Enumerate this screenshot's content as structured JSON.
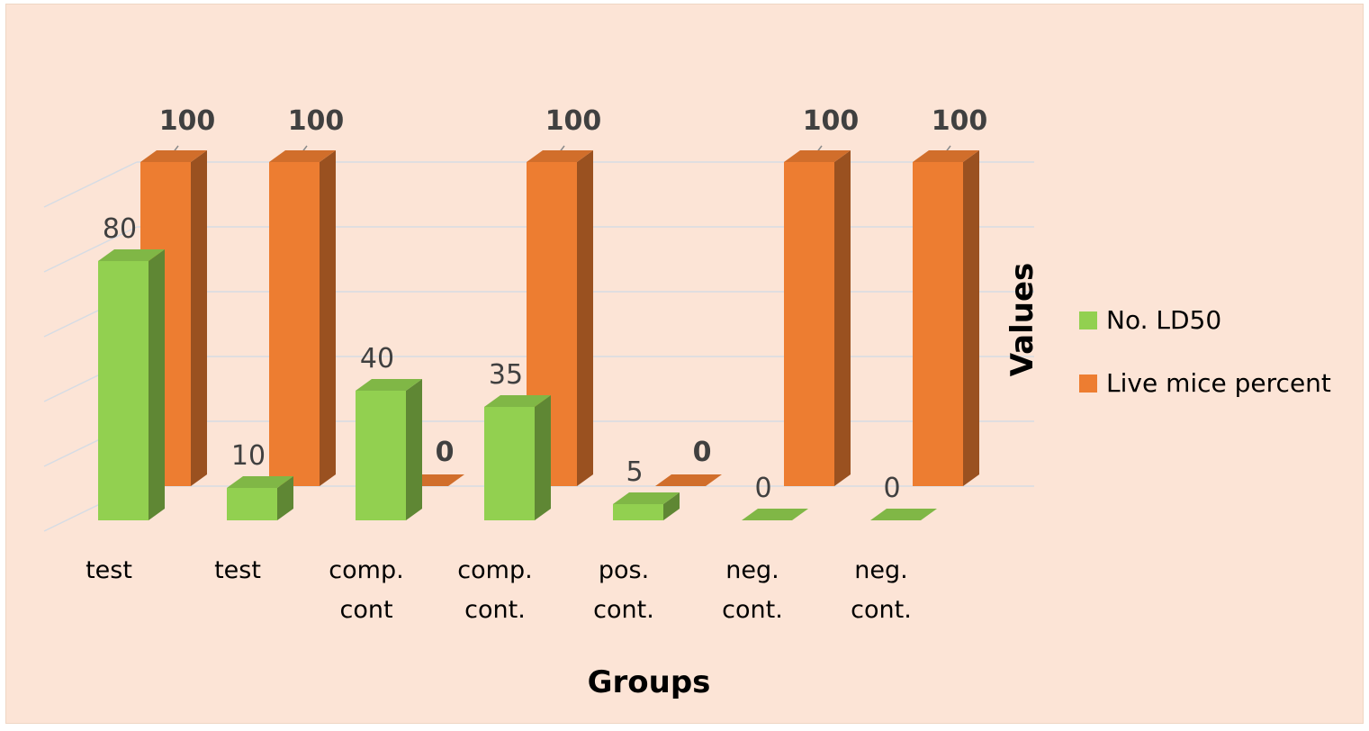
{
  "chart_data": {
    "type": "bar",
    "subtype": "3d-clustered-column",
    "background_color": "#fce4d6",
    "categories": [
      [
        "test"
      ],
      [
        "test"
      ],
      [
        "comp.",
        "cont"
      ],
      [
        "comp.",
        "cont."
      ],
      [
        "pos.",
        "cont."
      ],
      [
        "neg.",
        "cont."
      ],
      [
        "neg.",
        "cont."
      ]
    ],
    "series": [
      {
        "name": "No. LD50",
        "color": "#92d050",
        "values": [
          80,
          10,
          40,
          35,
          5,
          0,
          0
        ],
        "labels": [
          "80",
          "10",
          "40",
          "35",
          "5",
          "0",
          "0"
        ],
        "label_weight": "normal"
      },
      {
        "name": "Live mice percent",
        "color": "#ed7d31",
        "values": [
          100,
          100,
          0,
          100,
          0,
          100,
          100
        ],
        "labels": [
          "100",
          "100",
          "0",
          "100",
          "0",
          "100",
          "100"
        ],
        "label_weight": "bold"
      }
    ],
    "xlabel": "Groups",
    "ylabel": "Values",
    "ylim": [
      0,
      100
    ],
    "grid": true,
    "legend_position": "right"
  }
}
